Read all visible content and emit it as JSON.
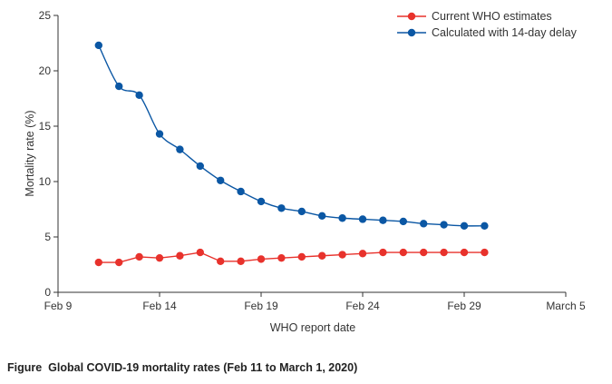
{
  "chart_data": {
    "type": "line",
    "xlabel": "WHO report date",
    "ylabel": "Mortality rate (%)",
    "ylim": [
      0,
      25
    ],
    "yticks": [
      0,
      5,
      10,
      15,
      20,
      25
    ],
    "x_ticks": [
      {
        "day": 9,
        "label": "Feb 9"
      },
      {
        "day": 14,
        "label": "Feb 14"
      },
      {
        "day": 19,
        "label": "Feb 19"
      },
      {
        "day": 24,
        "label": "Feb 24"
      },
      {
        "day": 29,
        "label": "Feb 29"
      },
      {
        "day": 34,
        "label": "March 5"
      }
    ],
    "x_range_days": [
      9,
      34
    ],
    "x_days": [
      11,
      12,
      13,
      14,
      15,
      16,
      17,
      18,
      19,
      20,
      21,
      22,
      23,
      24,
      25,
      26,
      27,
      28,
      29,
      30
    ],
    "legend_position": "top-right",
    "grid": false,
    "series": [
      {
        "name": "Current WHO estimates",
        "color": "#e8322c",
        "values": [
          2.7,
          2.7,
          3.2,
          3.1,
          3.3,
          3.6,
          2.8,
          2.8,
          3.0,
          3.1,
          3.2,
          3.3,
          3.4,
          3.5,
          3.6,
          3.6,
          3.6,
          3.6,
          3.6,
          3.6
        ],
        "smooth": false
      },
      {
        "name": "Calculated with 14-day delay",
        "color": "#0b57a4",
        "values": [
          22.3,
          18.6,
          17.8,
          14.3,
          12.9,
          11.4,
          10.1,
          9.1,
          8.2,
          7.6,
          7.3,
          6.9,
          6.7,
          6.6,
          6.5,
          6.4,
          6.2,
          6.1,
          6.0,
          6.0
        ],
        "smooth": true
      }
    ]
  },
  "caption": {
    "bold": "Figure",
    "text": "Global COVID-19 mortality rates (Feb 11 to March 1, 2020)"
  }
}
